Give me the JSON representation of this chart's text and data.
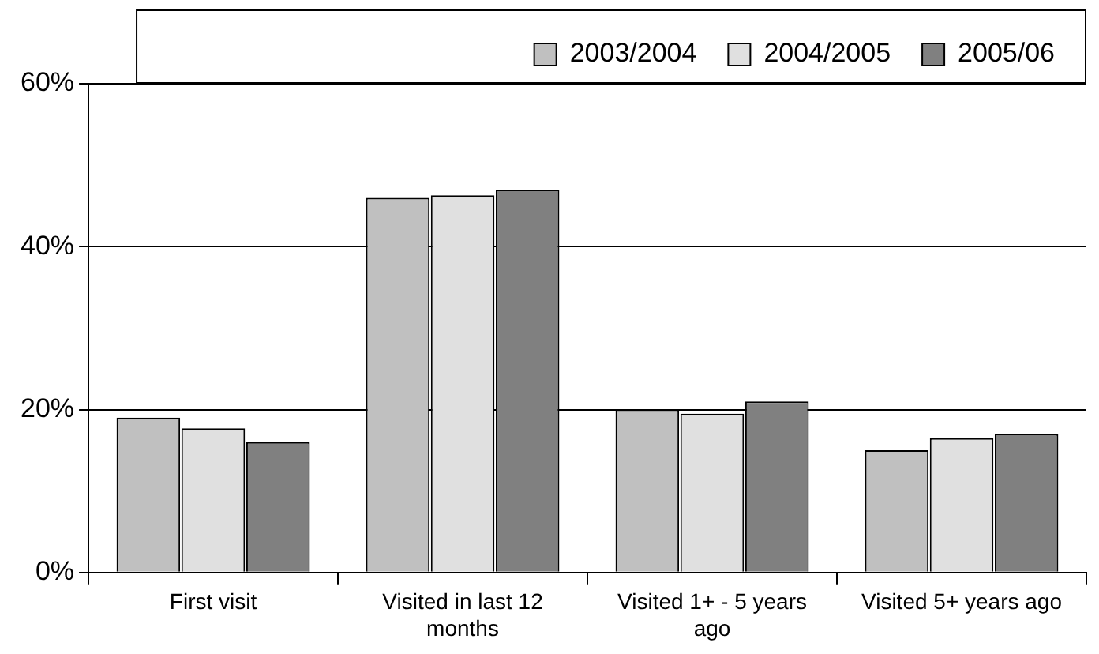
{
  "chart_data": {
    "type": "bar",
    "categories": [
      "First visit",
      "Visited in last 12 months",
      "Visited 1+ - 5 years ago",
      "Visited 5+ years ago"
    ],
    "series": [
      {
        "name": "2003/2004",
        "color": "#c0c0c0",
        "values": [
          19,
          46,
          20,
          15
        ]
      },
      {
        "name": "2004/2005",
        "color": "#e0e0e0",
        "values": [
          17.7,
          46.3,
          19.5,
          16.5
        ]
      },
      {
        "name": "2005/06",
        "color": "#808080",
        "values": [
          16,
          47,
          21,
          17
        ]
      }
    ],
    "ylim": [
      0,
      60
    ],
    "yticks": [
      {
        "value": 0,
        "label": "0%"
      },
      {
        "value": 20,
        "label": "20%"
      },
      {
        "value": 40,
        "label": "40%"
      },
      {
        "value": 60,
        "label": "60%"
      }
    ],
    "grid": "y",
    "legend": "top"
  }
}
